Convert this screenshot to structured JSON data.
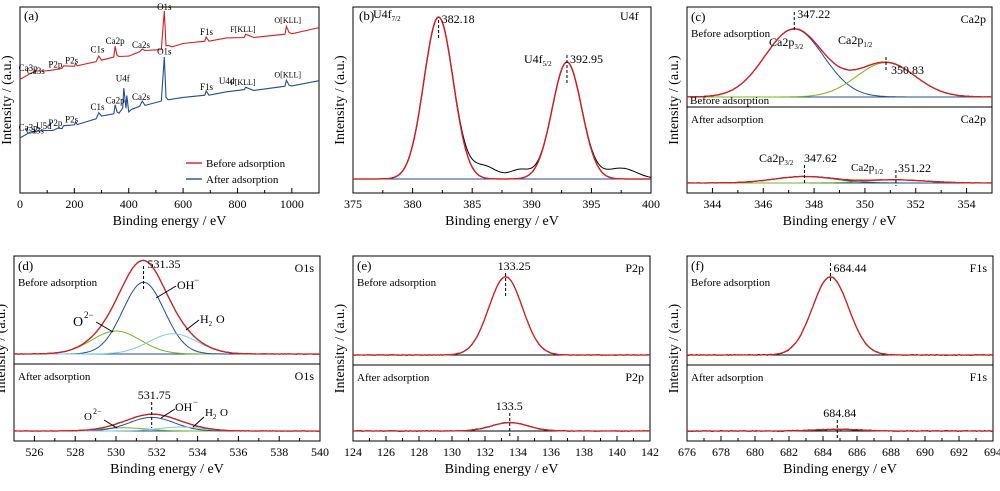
{
  "chart_data": [
    {
      "panel": "(a)",
      "type": "line",
      "xlabel": "Binding energy / eV",
      "ylabel": "Intensity / (a.u.)",
      "xlim": [
        0,
        1100
      ],
      "xticks": [
        0,
        200,
        400,
        600,
        800,
        1000
      ],
      "legend": [
        "Before adsorption",
        "After adsorption"
      ],
      "legend_position": "bottom-right",
      "series": [
        {
          "name": "Before adsorption",
          "color": "#d42020",
          "x": [
            0,
            40,
            55,
            90,
            120,
            140,
            155,
            160,
            200,
            205,
            210,
            280,
            290,
            300,
            345,
            350,
            357,
            364,
            400,
            440,
            450,
            460,
            520,
            531,
            537,
            545,
            560,
            600,
            680,
            685,
            695,
            760,
            825,
            830,
            860,
            975,
            980,
            990,
            1000,
            1100
          ],
          "y": [
            0.615,
            0.64,
            0.66,
            0.652,
            0.665,
            0.662,
            0.675,
            0.68,
            0.685,
            0.693,
            0.688,
            0.702,
            0.74,
            0.71,
            0.735,
            0.785,
            0.745,
            0.73,
            0.74,
            0.755,
            0.778,
            0.762,
            0.775,
            0.975,
            0.795,
            0.79,
            0.79,
            0.8,
            0.82,
            0.835,
            0.82,
            0.83,
            0.84,
            0.85,
            0.84,
            0.85,
            0.9,
            0.86,
            0.86,
            0.885
          ]
        },
        {
          "name": "After adsorption",
          "color": "#1f4e96",
          "x": [
            0,
            40,
            55,
            90,
            120,
            140,
            155,
            160,
            200,
            205,
            210,
            280,
            290,
            300,
            345,
            350,
            357,
            364,
            378,
            382,
            390,
            393,
            400,
            410,
            440,
            450,
            460,
            520,
            531,
            537,
            545,
            600,
            680,
            685,
            695,
            760,
            825,
            830,
            860,
            975,
            980,
            990,
            1000,
            1100
          ],
          "y": [
            0.3,
            0.325,
            0.335,
            0.332,
            0.34,
            0.345,
            0.35,
            0.358,
            0.37,
            0.378,
            0.372,
            0.395,
            0.435,
            0.41,
            0.43,
            0.47,
            0.44,
            0.425,
            0.46,
            0.56,
            0.46,
            0.52,
            0.44,
            0.445,
            0.47,
            0.49,
            0.475,
            0.49,
            0.735,
            0.51,
            0.505,
            0.51,
            0.53,
            0.545,
            0.53,
            0.54,
            0.56,
            0.565,
            0.555,
            0.57,
            0.61,
            0.575,
            0.58,
            0.6
          ]
        }
      ],
      "annotations": [
        {
          "text": "O1s",
          "x": 531
        },
        {
          "text": "O1s",
          "x": 531
        },
        {
          "text": "Ca2p",
          "x": 350
        },
        {
          "text": "Ca2p",
          "x": 350
        },
        {
          "text": "C1s",
          "x": 285
        },
        {
          "text": "C1s",
          "x": 285
        },
        {
          "text": "Ca2s",
          "x": 440
        },
        {
          "text": "Ca2s",
          "x": 440
        },
        {
          "text": "F1s",
          "x": 685
        },
        {
          "text": "F1s",
          "x": 685
        },
        {
          "text": "F[KLL]",
          "x": 830
        },
        {
          "text": "F[KLL]",
          "x": 830
        },
        {
          "text": "O[KLL]",
          "x": 980
        },
        {
          "text": "O[KLL]",
          "x": 980
        },
        {
          "text": "U4f",
          "x": 382
        },
        {
          "text": "U4d",
          "x": 738
        },
        {
          "text": "P2p",
          "x": 133
        },
        {
          "text": "P2p",
          "x": 133
        },
        {
          "text": "P2s",
          "x": 190
        },
        {
          "text": "P2s",
          "x": 190
        },
        {
          "text": "Ca3p",
          "x": 25
        },
        {
          "text": "Ca3p",
          "x": 25
        },
        {
          "text": "Ca3s",
          "x": 44
        },
        {
          "text": "Ca3s",
          "x": 44
        },
        {
          "text": "U5d",
          "x": 100
        }
      ]
    },
    {
      "panel": "(b)",
      "type": "line",
      "title": "U4f",
      "xlabel": "Binding energy / eV",
      "ylabel": "Intensity / (a.u.)",
      "xlim": [
        375,
        400
      ],
      "xticks": [
        375,
        380,
        385,
        390,
        395,
        400
      ],
      "peaks": [
        {
          "label": "U4f7/2",
          "center": 382.18,
          "value_label": "382.18",
          "height": 0.9,
          "fwhm": 2.9
        },
        {
          "label": "U4f5/2",
          "center": 392.95,
          "value_label": "392.95",
          "height": 0.65,
          "fwhm": 2.9
        }
      ]
    },
    {
      "panel": "(c)",
      "type": "line",
      "xlabel": "Binding energy / eV",
      "ylabel": "Intensity / (a.u.)",
      "xlim": [
        343,
        355
      ],
      "xticks": [
        344,
        346,
        348,
        350,
        352,
        354
      ],
      "subplots": [
        {
          "state": "Before adsorption",
          "element": "Ca2p",
          "peaks": [
            {
              "label": "Ca2p3/2",
              "center": 347.22,
              "value_label": "347.22",
              "height": 0.85,
              "fwhm": 2.7
            },
            {
              "label": "Ca2p1/2",
              "center": 350.83,
              "value_label": "350.83",
              "height": 0.43,
              "fwhm": 2.7
            }
          ]
        },
        {
          "state": "After adsorption",
          "element": "Ca2p",
          "peaks": [
            {
              "label": "Ca2p3/2",
              "center": 347.62,
              "value_label": "347.62",
              "height": 0.25,
              "fwhm": 2.8
            },
            {
              "label": "Ca2p1/2",
              "center": 351.22,
              "value_label": "351.22",
              "height": 0.12,
              "fwhm": 2.8
            }
          ]
        }
      ]
    },
    {
      "panel": "(d)",
      "type": "line",
      "xlabel": "Binding energy / eV",
      "ylabel": "Intensity / (a.u.)",
      "xlim": [
        525,
        540
      ],
      "xticks": [
        526,
        528,
        530,
        532,
        534,
        536,
        538,
        540
      ],
      "subplots": [
        {
          "state": "Before adsorption",
          "element": "O1s",
          "top_label": "531.35",
          "peaks": [
            {
              "label": "O2-",
              "center": 530.0,
              "height": 0.25,
              "fwhm": 2.8
            },
            {
              "label": "OH-",
              "center": 531.35,
              "height": 0.78,
              "fwhm": 2.4
            },
            {
              "label": "H2O",
              "center": 532.8,
              "height": 0.22,
              "fwhm": 2.8
            }
          ]
        },
        {
          "state": "After adsorption",
          "element": "O1s",
          "top_label": "531.75",
          "peaks": [
            {
              "label": "O2-",
              "center": 530.4,
              "height": 0.08,
              "fwhm": 2.6
            },
            {
              "label": "OH-",
              "center": 531.75,
              "height": 0.34,
              "fwhm": 2.6
            },
            {
              "label": "H2O",
              "center": 533.2,
              "height": 0.1,
              "fwhm": 2.6
            }
          ]
        }
      ]
    },
    {
      "panel": "(e)",
      "type": "line",
      "xlabel": "Binding energy / eV",
      "ylabel": "Intensity / (a.u.)",
      "xlim": [
        124,
        142
      ],
      "xticks": [
        124,
        126,
        128,
        130,
        132,
        134,
        136,
        138,
        140,
        142
      ],
      "subplots": [
        {
          "state": "Before adsorption",
          "element": "P2p",
          "peaks": [
            {
              "center": 133.25,
              "value_label": "133.25",
              "height": 0.85,
              "fwhm": 2.4
            }
          ]
        },
        {
          "state": "After adsorption",
          "element": "P2p",
          "peaks": [
            {
              "center": 133.5,
              "value_label": "133.5",
              "height": 0.28,
              "fwhm": 2.6
            }
          ]
        }
      ]
    },
    {
      "panel": "(f)",
      "type": "line",
      "xlabel": "Binding energy / eV",
      "ylabel": "Intensity / (a.u.)",
      "xlim": [
        676,
        694
      ],
      "xticks": [
        676,
        678,
        680,
        682,
        684,
        686,
        688,
        690,
        692,
        694
      ],
      "subplots": [
        {
          "state": "Before adsorption",
          "element": "F1s",
          "peaks": [
            {
              "center": 684.44,
              "value_label": "684.44",
              "height": 0.85,
              "fwhm": 2.5
            }
          ]
        },
        {
          "state": "After adsorption",
          "element": "F1s",
          "peaks": [
            {
              "center": 684.84,
              "value_label": "684.84",
              "height": 0.12,
              "fwhm": 3.0
            }
          ]
        }
      ]
    }
  ],
  "colors": {
    "envelope": "#d42020",
    "raw": "#000000",
    "blue": "#1f4e96",
    "green": "#7ab51d",
    "lightblue": "#7ec8e8",
    "baseline": "#1f4e96"
  }
}
